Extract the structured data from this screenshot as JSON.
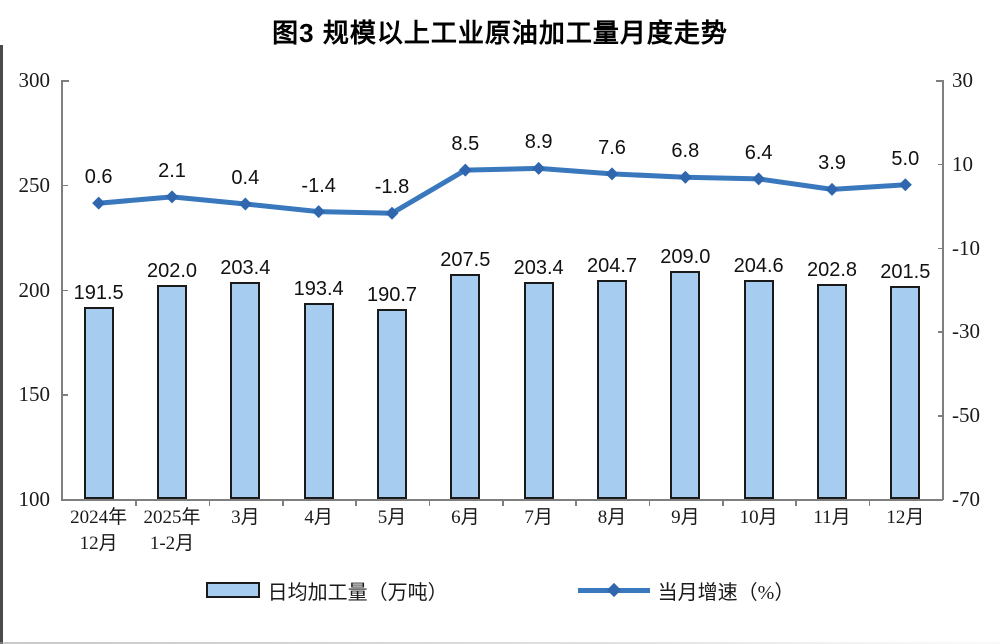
{
  "title": "图3 规模以上工业原油加工量月度走势",
  "chart_data": {
    "type": "bar+line",
    "title": "图3 规模以上工业原油加工量月度走势",
    "categories": [
      "2024年\n12月",
      "2025年\n1-2月",
      "3月",
      "4月",
      "5月",
      "6月",
      "7月",
      "8月",
      "9月",
      "10月",
      "11月",
      "12月"
    ],
    "series": [
      {
        "name": "日均加工量（万吨）",
        "type": "bar",
        "axis": "left",
        "values": [
          191.5,
          202.0,
          203.4,
          193.4,
          190.7,
          207.5,
          203.4,
          204.7,
          209.0,
          204.6,
          202.8,
          201.5
        ],
        "fill": "#a6ccef",
        "stroke": "#1a1a1a"
      },
      {
        "name": "当月增速（%）",
        "type": "line",
        "axis": "right",
        "values": [
          0.6,
          2.1,
          0.4,
          -1.4,
          -1.8,
          8.5,
          8.9,
          7.6,
          6.8,
          6.4,
          3.9,
          5.0
        ],
        "color": "#3a78be",
        "marker": "diamond",
        "marker_color": "#2f66ae"
      }
    ],
    "axis_left": {
      "min": 100,
      "max": 300,
      "tick_step": 50,
      "ticks": [
        300,
        250,
        200,
        150,
        100
      ]
    },
    "axis_right": {
      "min": -70,
      "max": 30,
      "tick_step": 20,
      "ticks": [
        30,
        10,
        -10,
        -30,
        -50,
        -70
      ]
    },
    "grid": false,
    "data_labels": true,
    "legend_position": "bottom"
  },
  "legend": {
    "items": [
      {
        "label": "日均加工量（万吨）",
        "swatch": "bar"
      },
      {
        "label": "当月增速（%）",
        "swatch": "line-diamond"
      }
    ]
  },
  "colors": {
    "bar_fill": "#a6ccef",
    "bar_border": "#1a1a1a",
    "line": "#3a78be",
    "marker": "#2f66ae",
    "axis": "#7f7f7f",
    "text": "#151515",
    "page_border": "#4a4a4a"
  }
}
